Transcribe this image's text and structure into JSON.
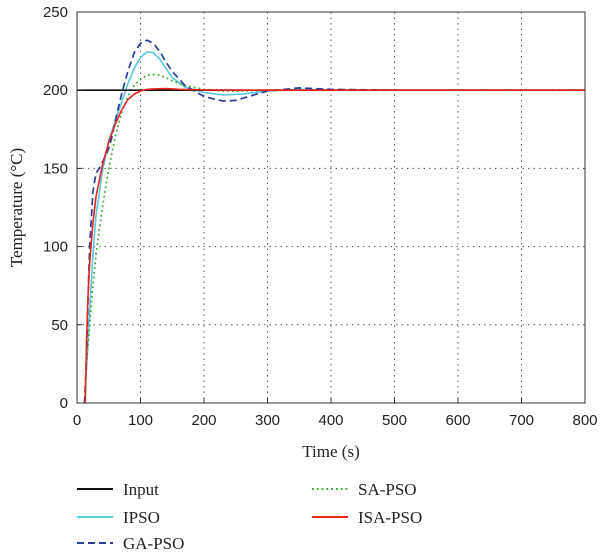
{
  "chart_data": {
    "type": "line",
    "xlabel": "Time (s)",
    "ylabel": "Temperature (°C)",
    "xlim": [
      0,
      800
    ],
    "ylim": [
      0,
      250
    ],
    "x_ticks": [
      0,
      100,
      200,
      300,
      400,
      500,
      600,
      700,
      800
    ],
    "y_ticks": [
      0,
      50,
      100,
      150,
      200,
      250
    ],
    "grid": true,
    "legend_position": "bottom",
    "series": [
      {
        "name": "Input",
        "color": "#111111",
        "style": "solid",
        "x": [
          0,
          800
        ],
        "y": [
          200,
          200
        ]
      },
      {
        "name": "IPSO",
        "color": "#5bc8e0",
        "style": "solid",
        "x": [
          12,
          16,
          20,
          25,
          30,
          40,
          50,
          60,
          70,
          80,
          90,
          100,
          110,
          120,
          130,
          140,
          150,
          170,
          200,
          230,
          260,
          300,
          350,
          400,
          500,
          600,
          700,
          800
        ],
        "y": [
          0,
          30,
          60,
          95,
          120,
          148,
          168,
          180,
          192,
          204,
          214,
          221,
          224.5,
          224,
          220,
          214,
          208,
          202,
          198.5,
          197,
          197.5,
          199.5,
          200.5,
          200,
          200,
          200,
          200,
          200
        ]
      },
      {
        "name": "GA-PSO",
        "color": "#2a3f9a",
        "style": "dashed",
        "x": [
          12,
          15,
          18,
          20,
          25,
          30,
          35,
          40,
          45,
          50,
          55,
          60,
          70,
          80,
          90,
          100,
          110,
          120,
          130,
          140,
          150,
          170,
          200,
          230,
          250,
          270,
          300,
          350,
          400,
          500,
          600,
          700,
          800
        ],
        "y": [
          0,
          30,
          75,
          100,
          135,
          147,
          150,
          154,
          158,
          163,
          170,
          180,
          197,
          212,
          224,
          230,
          232,
          230,
          225,
          218,
          212,
          203,
          196,
          193,
          193.5,
          196,
          199.5,
          201.5,
          200.5,
          200,
          200,
          200,
          200
        ]
      },
      {
        "name": "SA-PSO",
        "color": "#3aa832",
        "style": "dotted",
        "x": [
          12,
          15,
          20,
          25,
          30,
          40,
          50,
          60,
          70,
          80,
          90,
          100,
          110,
          120,
          130,
          140,
          150,
          170,
          200,
          230,
          260,
          300,
          350,
          400,
          500,
          600,
          700,
          800
        ],
        "y": [
          0,
          25,
          50,
          75,
          95,
          125,
          150,
          170,
          185,
          196,
          203,
          207,
          209.5,
          210,
          209.5,
          208,
          206,
          203,
          200.5,
          199.5,
          199.5,
          200,
          200,
          200,
          200,
          200,
          200,
          200
        ]
      },
      {
        "name": "ISA-PSO",
        "color": "#e8261e",
        "style": "solid",
        "x": [
          13,
          15,
          17,
          20,
          25,
          30,
          40,
          50,
          60,
          70,
          80,
          90,
          100,
          110,
          120,
          140,
          160,
          200,
          300,
          400,
          500,
          600,
          700,
          800
        ],
        "y": [
          0,
          40,
          65,
          90,
          115,
          132,
          152,
          167,
          178,
          187,
          194,
          197.5,
          199.5,
          200.5,
          200.8,
          201,
          200.6,
          200.2,
          200,
          200,
          200,
          200,
          200,
          200
        ]
      }
    ]
  }
}
